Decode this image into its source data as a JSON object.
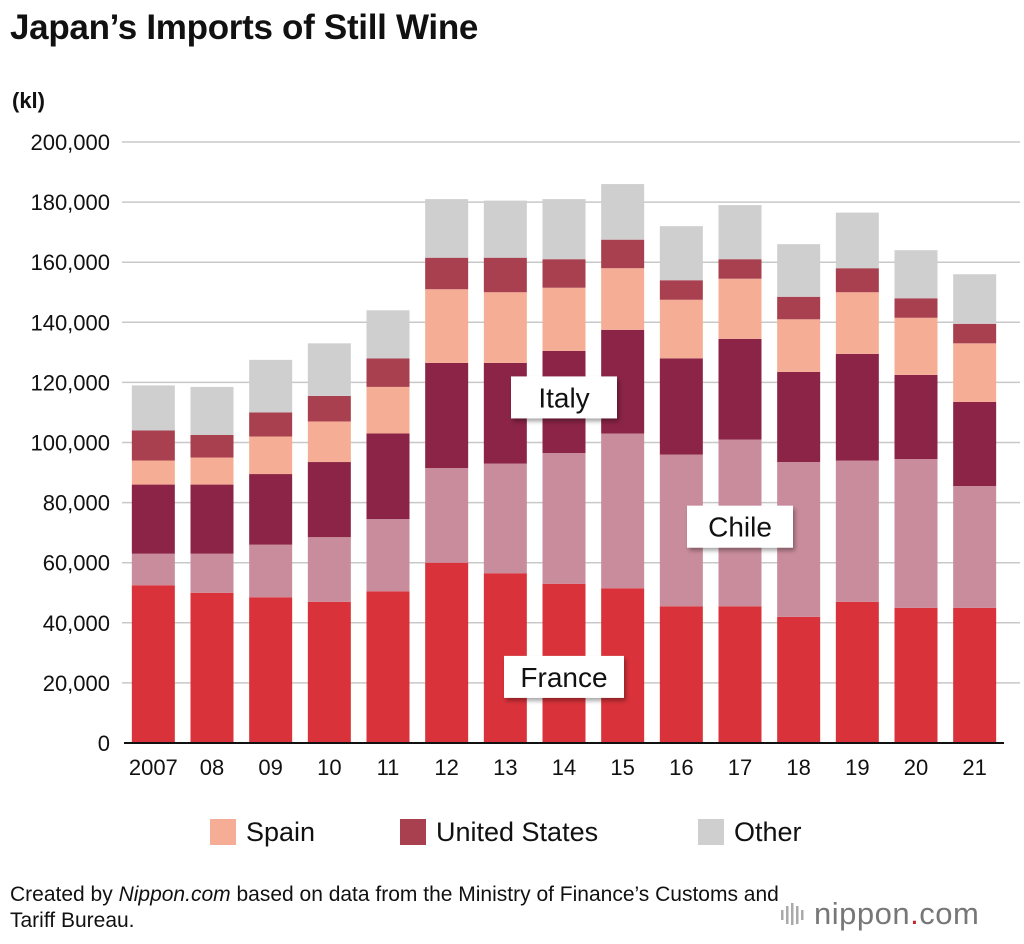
{
  "title": "Japan’s Imports of Still Wine",
  "unit_label": "(kl)",
  "legend": {
    "items": [
      {
        "label": "Spain",
        "color": "#f5ad96"
      },
      {
        "label": "United States",
        "color": "#a8404f"
      },
      {
        "label": "Other",
        "color": "#cfcfcf"
      }
    ]
  },
  "note": {
    "prefix": "Created by ",
    "source": "Nippon.com",
    "suffix": " based on data from the Ministry of Finance’s Customs and Tariff Bureau."
  },
  "brand": {
    "name": "nippon",
    "dot": ".",
    "suffix": "com"
  },
  "chart_data": {
    "type": "bar",
    "stacked": true,
    "categories": [
      "2007",
      "08",
      "09",
      "10",
      "11",
      "12",
      "13",
      "14",
      "15",
      "16",
      "17",
      "18",
      "19",
      "20",
      "21"
    ],
    "series": [
      {
        "name": "France",
        "color": "#d9323a",
        "values": [
          52500,
          50000,
          48500,
          47000,
          50500,
          60000,
          56500,
          53000,
          51500,
          45500,
          45500,
          42000,
          47000,
          45000,
          45000
        ]
      },
      {
        "name": "Chile",
        "color": "#c98c9c",
        "values": [
          10500,
          13000,
          17500,
          21500,
          24000,
          31500,
          36500,
          43500,
          51500,
          50500,
          55500,
          51500,
          47000,
          49500,
          40500
        ]
      },
      {
        "name": "Italy",
        "color": "#8b2446",
        "values": [
          23000,
          23000,
          23500,
          25000,
          28500,
          35000,
          33500,
          34000,
          34500,
          32000,
          33500,
          30000,
          35500,
          28000,
          28000
        ]
      },
      {
        "name": "Spain",
        "color": "#f5ad96",
        "values": [
          8000,
          9000,
          12500,
          13500,
          15500,
          24500,
          23500,
          21000,
          20500,
          19500,
          20000,
          17500,
          20500,
          19000,
          19500
        ]
      },
      {
        "name": "United States",
        "color": "#a8404f",
        "values": [
          10000,
          7500,
          8000,
          8500,
          9500,
          10500,
          11500,
          9500,
          9500,
          6500,
          6500,
          7500,
          8000,
          6500,
          6500
        ]
      },
      {
        "name": "Other",
        "color": "#cfcfcf",
        "values": [
          15000,
          16000,
          17500,
          17500,
          16000,
          19500,
          19000,
          20000,
          18500,
          18000,
          18000,
          17500,
          18500,
          16000,
          16500
        ]
      }
    ],
    "yticks": [
      "0",
      "20,000",
      "40,000",
      "60,000",
      "80,000",
      "100,000",
      "120,000",
      "140,000",
      "160,000",
      "180,000",
      "200,000"
    ],
    "ylim": [
      0,
      200000
    ],
    "ystep": 20000,
    "grid": true,
    "annotations": [
      {
        "text": "France",
        "category": "14",
        "value": 22000
      },
      {
        "text": "Chile",
        "category": "17",
        "value": 72000
      },
      {
        "text": "Italy",
        "category": "14",
        "value": 115000
      }
    ]
  }
}
